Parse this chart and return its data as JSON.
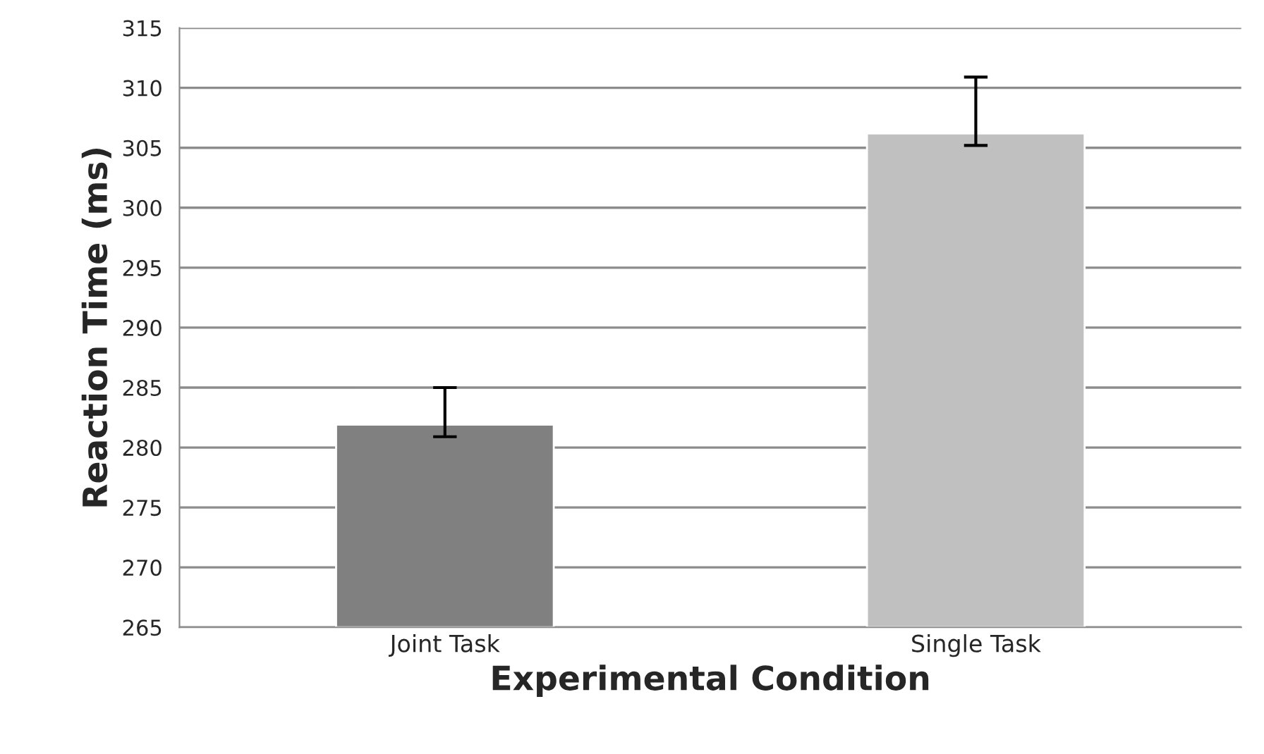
{
  "chart_data": {
    "type": "bar",
    "xlabel": "Experimental Condition",
    "ylabel": "Reaction Time (ms)",
    "categories": [
      "Joint Task",
      "Single Task"
    ],
    "values": [
      281.9,
      306.2
    ],
    "colors": [
      "#808080",
      "#c0c0c0"
    ],
    "errors": [
      [
        280.9,
        285.0
      ],
      [
        305.2,
        310.9
      ]
    ],
    "ylim": [
      265,
      315
    ],
    "yticks": [
      265,
      270,
      275,
      280,
      285,
      290,
      295,
      300,
      305,
      310,
      315
    ],
    "grid": "y"
  }
}
